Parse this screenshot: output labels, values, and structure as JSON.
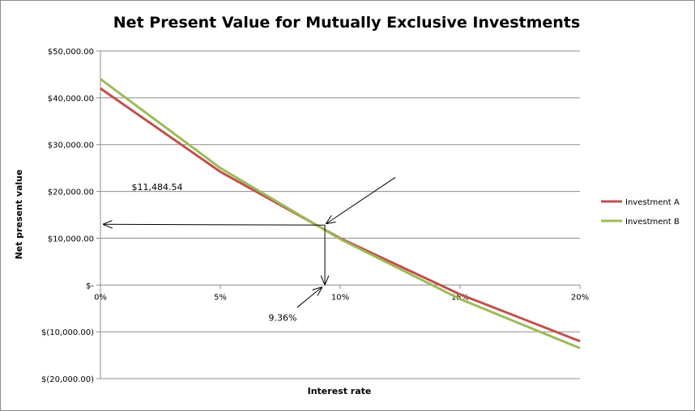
{
  "chart_data": {
    "type": "line",
    "title": "Net Present Value for Mutually Exclusive Investments",
    "xlabel": "Interest rate",
    "ylabel": "Net present value",
    "x": [
      0,
      5,
      10,
      15,
      20
    ],
    "x_tick_labels": [
      "0%",
      "5%",
      "10%",
      "15%",
      "20%"
    ],
    "xlim": [
      0,
      20
    ],
    "ylim": [
      -20000,
      50000
    ],
    "y_ticks": [
      50000,
      40000,
      30000,
      20000,
      10000,
      0,
      -10000,
      -20000
    ],
    "y_tick_labels": [
      "$50,000.00",
      "$40,000.00",
      "$30,000.00",
      "$20,000.00",
      "$10,000.00",
      "$-",
      "$(10,000.00)",
      "$(20,000.00)"
    ],
    "grid": "horizontal",
    "legend": "right",
    "series": [
      {
        "name": "Investment A",
        "color": "#c0504d",
        "values": [
          42000,
          24200,
          10000,
          -2000,
          -12000
        ]
      },
      {
        "name": "Investment B",
        "color": "#9bbb59",
        "values": [
          44000,
          25000,
          9800,
          -3000,
          -13500
        ]
      }
    ],
    "annotations": {
      "crossover_value_label": "$11,484.54",
      "crossover_rate_label": "9.36%",
      "crossover_x": 9.36,
      "crossover_y": 12800
    }
  }
}
